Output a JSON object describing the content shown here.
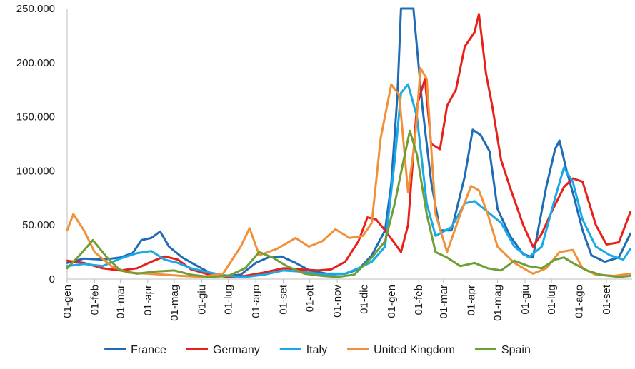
{
  "chart_data": {
    "type": "line",
    "title": "",
    "xlabel": "",
    "ylabel": "",
    "ylim": [
      0,
      250000
    ],
    "y_ticks": [
      "0",
      "50.000",
      "100.000",
      "150.000",
      "200.000",
      "250.000"
    ],
    "y_tick_values": [
      0,
      50000,
      100000,
      150000,
      200000,
      250000
    ],
    "x_range": [
      "2020-01-01",
      "2021-09-30"
    ],
    "x_tick_labels": [
      "01-gen",
      "01-feb",
      "01-mar",
      "01-apr",
      "01-mag",
      "01-giu",
      "01-lug",
      "01-ago",
      "01-set",
      "01-ott",
      "01-nov",
      "01-dic",
      "01-gen",
      "01-feb",
      "01-mar",
      "01-apr",
      "01-mag",
      "01-giu",
      "01-lug",
      "01-ago",
      "01-set"
    ],
    "x_tick_dates": [
      "2020-01-01",
      "2020-02-01",
      "2020-03-01",
      "2020-04-01",
      "2020-05-01",
      "2020-06-01",
      "2020-07-01",
      "2020-08-01",
      "2020-09-01",
      "2020-10-01",
      "2020-11-01",
      "2020-12-01",
      "2021-01-01",
      "2021-02-01",
      "2021-03-01",
      "2021-04-01",
      "2021-05-01",
      "2021-06-01",
      "2021-07-01",
      "2021-08-01",
      "2021-09-01"
    ],
    "grid": false,
    "legend_position": "bottom",
    "series": [
      {
        "name": "France",
        "color": "#1f6bb5",
        "points": [
          [
            "2020-01-01",
            15000
          ],
          [
            "2020-01-20",
            19000
          ],
          [
            "2020-02-10",
            18000
          ],
          [
            "2020-03-01",
            20000
          ],
          [
            "2020-03-15",
            24000
          ],
          [
            "2020-03-25",
            36000
          ],
          [
            "2020-04-05",
            38000
          ],
          [
            "2020-04-15",
            44000
          ],
          [
            "2020-04-25",
            30000
          ],
          [
            "2020-05-10",
            20000
          ],
          [
            "2020-05-25",
            13000
          ],
          [
            "2020-06-10",
            6000
          ],
          [
            "2020-06-25",
            3000
          ],
          [
            "2020-07-15",
            4000
          ],
          [
            "2020-08-01",
            15000
          ],
          [
            "2020-08-15",
            20000
          ],
          [
            "2020-08-30",
            21000
          ],
          [
            "2020-09-15",
            15000
          ],
          [
            "2020-10-01",
            8000
          ],
          [
            "2020-10-20",
            5000
          ],
          [
            "2020-11-10",
            5000
          ],
          [
            "2020-11-25",
            9000
          ],
          [
            "2020-12-10",
            22000
          ],
          [
            "2020-12-25",
            45000
          ],
          [
            "2021-01-01",
            88000
          ],
          [
            "2021-01-08",
            170000
          ],
          [
            "2021-01-12",
            250000
          ],
          [
            "2021-01-26",
            250000
          ],
          [
            "2021-02-05",
            160000
          ],
          [
            "2021-02-15",
            90000
          ],
          [
            "2021-02-25",
            45000
          ],
          [
            "2021-03-10",
            45000
          ],
          [
            "2021-03-25",
            95000
          ],
          [
            "2021-04-03",
            138000
          ],
          [
            "2021-04-12",
            133000
          ],
          [
            "2021-04-22",
            118000
          ],
          [
            "2021-05-01",
            65000
          ],
          [
            "2021-05-15",
            40000
          ],
          [
            "2021-05-30",
            23000
          ],
          [
            "2021-06-10",
            20000
          ],
          [
            "2021-06-25",
            85000
          ],
          [
            "2021-07-05",
            120000
          ],
          [
            "2021-07-10",
            128000
          ],
          [
            "2021-07-18",
            100000
          ],
          [
            "2021-07-25",
            80000
          ],
          [
            "2021-08-05",
            45000
          ],
          [
            "2021-08-15",
            22000
          ],
          [
            "2021-08-30",
            16000
          ],
          [
            "2021-09-15",
            20000
          ],
          [
            "2021-09-28",
            42000
          ]
        ]
      },
      {
        "name": "Germany",
        "color": "#e8201a",
        "points": [
          [
            "2020-01-01",
            17000
          ],
          [
            "2020-01-20",
            15000
          ],
          [
            "2020-02-10",
            10000
          ],
          [
            "2020-03-01",
            8000
          ],
          [
            "2020-03-20",
            10000
          ],
          [
            "2020-04-05",
            16000
          ],
          [
            "2020-04-20",
            21000
          ],
          [
            "2020-05-05",
            18000
          ],
          [
            "2020-05-20",
            9000
          ],
          [
            "2020-06-10",
            4000
          ],
          [
            "2020-07-01",
            2000
          ],
          [
            "2020-07-20",
            3000
          ],
          [
            "2020-08-10",
            6000
          ],
          [
            "2020-09-01",
            10000
          ],
          [
            "2020-09-20",
            9000
          ],
          [
            "2020-10-10",
            8000
          ],
          [
            "2020-10-25",
            9000
          ],
          [
            "2020-11-10",
            16000
          ],
          [
            "2020-11-25",
            35000
          ],
          [
            "2020-12-05",
            57000
          ],
          [
            "2020-12-15",
            55000
          ],
          [
            "2020-12-25",
            45000
          ],
          [
            "2021-01-05",
            33000
          ],
          [
            "2021-01-12",
            25000
          ],
          [
            "2021-01-20",
            50000
          ],
          [
            "2021-01-30",
            160000
          ],
          [
            "2021-02-08",
            185000
          ],
          [
            "2021-02-15",
            125000
          ],
          [
            "2021-02-25",
            120000
          ],
          [
            "2021-03-05",
            160000
          ],
          [
            "2021-03-15",
            175000
          ],
          [
            "2021-03-25",
            215000
          ],
          [
            "2021-04-05",
            228000
          ],
          [
            "2021-04-10",
            245000
          ],
          [
            "2021-04-18",
            190000
          ],
          [
            "2021-04-25",
            160000
          ],
          [
            "2021-05-05",
            110000
          ],
          [
            "2021-05-15",
            85000
          ],
          [
            "2021-05-30",
            50000
          ],
          [
            "2021-06-10",
            30000
          ],
          [
            "2021-06-20",
            42000
          ],
          [
            "2021-07-01",
            62000
          ],
          [
            "2021-07-15",
            85000
          ],
          [
            "2021-07-25",
            93000
          ],
          [
            "2021-08-05",
            90000
          ],
          [
            "2021-08-20",
            50000
          ],
          [
            "2021-09-01",
            32000
          ],
          [
            "2021-09-15",
            34000
          ],
          [
            "2021-09-28",
            62000
          ]
        ]
      },
      {
        "name": "Italy",
        "color": "#18a9e8",
        "points": [
          [
            "2020-01-01",
            12000
          ],
          [
            "2020-01-20",
            14000
          ],
          [
            "2020-02-10",
            12000
          ],
          [
            "2020-03-01",
            19000
          ],
          [
            "2020-03-20",
            24000
          ],
          [
            "2020-04-05",
            26000
          ],
          [
            "2020-04-20",
            18000
          ],
          [
            "2020-05-05",
            15000
          ],
          [
            "2020-05-20",
            10000
          ],
          [
            "2020-06-10",
            6000
          ],
          [
            "2020-07-01",
            3000
          ],
          [
            "2020-07-20",
            2000
          ],
          [
            "2020-08-10",
            4000
          ],
          [
            "2020-09-01",
            8000
          ],
          [
            "2020-09-20",
            7000
          ],
          [
            "2020-10-10",
            5000
          ],
          [
            "2020-10-25",
            4000
          ],
          [
            "2020-11-10",
            5000
          ],
          [
            "2020-11-25",
            10000
          ],
          [
            "2020-12-10",
            16000
          ],
          [
            "2020-12-25",
            30000
          ],
          [
            "2021-01-05",
            110000
          ],
          [
            "2021-01-12",
            172000
          ],
          [
            "2021-01-20",
            180000
          ],
          [
            "2021-01-30",
            150000
          ],
          [
            "2021-02-10",
            70000
          ],
          [
            "2021-02-20",
            40000
          ],
          [
            "2021-03-10",
            48000
          ],
          [
            "2021-03-25",
            70000
          ],
          [
            "2021-04-05",
            72000
          ],
          [
            "2021-04-20",
            62000
          ],
          [
            "2021-05-05",
            52000
          ],
          [
            "2021-05-20",
            30000
          ],
          [
            "2021-06-05",
            20000
          ],
          [
            "2021-06-20",
            30000
          ],
          [
            "2021-07-05",
            75000
          ],
          [
            "2021-07-15",
            103000
          ],
          [
            "2021-07-25",
            90000
          ],
          [
            "2021-08-05",
            55000
          ],
          [
            "2021-08-20",
            30000
          ],
          [
            "2021-09-05",
            22000
          ],
          [
            "2021-09-20",
            18000
          ],
          [
            "2021-09-28",
            28000
          ]
        ]
      },
      {
        "name": "United Kingdom",
        "color": "#f0913a",
        "points": [
          [
            "2020-01-01",
            45000
          ],
          [
            "2020-01-08",
            60000
          ],
          [
            "2020-01-20",
            45000
          ],
          [
            "2020-02-01",
            25000
          ],
          [
            "2020-02-20",
            12000
          ],
          [
            "2020-03-10",
            6000
          ],
          [
            "2020-04-01",
            5000
          ],
          [
            "2020-04-20",
            4000
          ],
          [
            "2020-05-10",
            3000
          ],
          [
            "2020-06-01",
            2000
          ],
          [
            "2020-06-25",
            5000
          ],
          [
            "2020-07-15",
            30000
          ],
          [
            "2020-07-25",
            47000
          ],
          [
            "2020-08-05",
            22000
          ],
          [
            "2020-08-25",
            28000
          ],
          [
            "2020-09-15",
            38000
          ],
          [
            "2020-09-30",
            30000
          ],
          [
            "2020-10-15",
            35000
          ],
          [
            "2020-10-30",
            46000
          ],
          [
            "2020-11-15",
            38000
          ],
          [
            "2020-11-30",
            40000
          ],
          [
            "2020-12-10",
            52000
          ],
          [
            "2020-12-20",
            130000
          ],
          [
            "2021-01-01",
            180000
          ],
          [
            "2021-01-10",
            170000
          ],
          [
            "2021-01-20",
            80000
          ],
          [
            "2021-01-28",
            130000
          ],
          [
            "2021-02-03",
            195000
          ],
          [
            "2021-02-10",
            185000
          ],
          [
            "2021-02-20",
            60000
          ],
          [
            "2021-03-05",
            25000
          ],
          [
            "2021-03-20",
            60000
          ],
          [
            "2021-04-01",
            86000
          ],
          [
            "2021-04-10",
            82000
          ],
          [
            "2021-04-20",
            60000
          ],
          [
            "2021-05-01",
            30000
          ],
          [
            "2021-05-20",
            15000
          ],
          [
            "2021-06-10",
            5000
          ],
          [
            "2021-06-25",
            10000
          ],
          [
            "2021-07-10",
            25000
          ],
          [
            "2021-07-25",
            27000
          ],
          [
            "2021-08-05",
            10000
          ],
          [
            "2021-08-20",
            4000
          ],
          [
            "2021-09-10",
            3000
          ],
          [
            "2021-09-28",
            5000
          ]
        ]
      },
      {
        "name": "Spain",
        "color": "#6f9e35",
        "points": [
          [
            "2020-01-01",
            10000
          ],
          [
            "2020-01-15",
            22000
          ],
          [
            "2020-01-30",
            36000
          ],
          [
            "2020-02-15",
            20000
          ],
          [
            "2020-03-01",
            8000
          ],
          [
            "2020-03-20",
            5000
          ],
          [
            "2020-04-10",
            7000
          ],
          [
            "2020-05-01",
            8000
          ],
          [
            "2020-05-20",
            4000
          ],
          [
            "2020-06-10",
            2000
          ],
          [
            "2020-07-01",
            3000
          ],
          [
            "2020-07-20",
            10000
          ],
          [
            "2020-08-05",
            25000
          ],
          [
            "2020-08-20",
            20000
          ],
          [
            "2020-09-05",
            12000
          ],
          [
            "2020-09-25",
            5000
          ],
          [
            "2020-10-15",
            3000
          ],
          [
            "2020-11-01",
            2000
          ],
          [
            "2020-11-20",
            4000
          ],
          [
            "2020-12-10",
            20000
          ],
          [
            "2020-12-25",
            35000
          ],
          [
            "2021-01-05",
            70000
          ],
          [
            "2021-01-15",
            110000
          ],
          [
            "2021-01-22",
            137000
          ],
          [
            "2021-01-30",
            115000
          ],
          [
            "2021-02-10",
            60000
          ],
          [
            "2021-02-20",
            25000
          ],
          [
            "2021-03-05",
            20000
          ],
          [
            "2021-03-20",
            12000
          ],
          [
            "2021-04-05",
            15000
          ],
          [
            "2021-04-20",
            10000
          ],
          [
            "2021-05-05",
            8000
          ],
          [
            "2021-05-20",
            17000
          ],
          [
            "2021-06-05",
            12000
          ],
          [
            "2021-06-20",
            10000
          ],
          [
            "2021-07-05",
            18000
          ],
          [
            "2021-07-15",
            20000
          ],
          [
            "2021-07-25",
            15000
          ],
          [
            "2021-08-10",
            8000
          ],
          [
            "2021-08-25",
            4000
          ],
          [
            "2021-09-15",
            2000
          ],
          [
            "2021-09-28",
            3000
          ]
        ]
      }
    ]
  }
}
